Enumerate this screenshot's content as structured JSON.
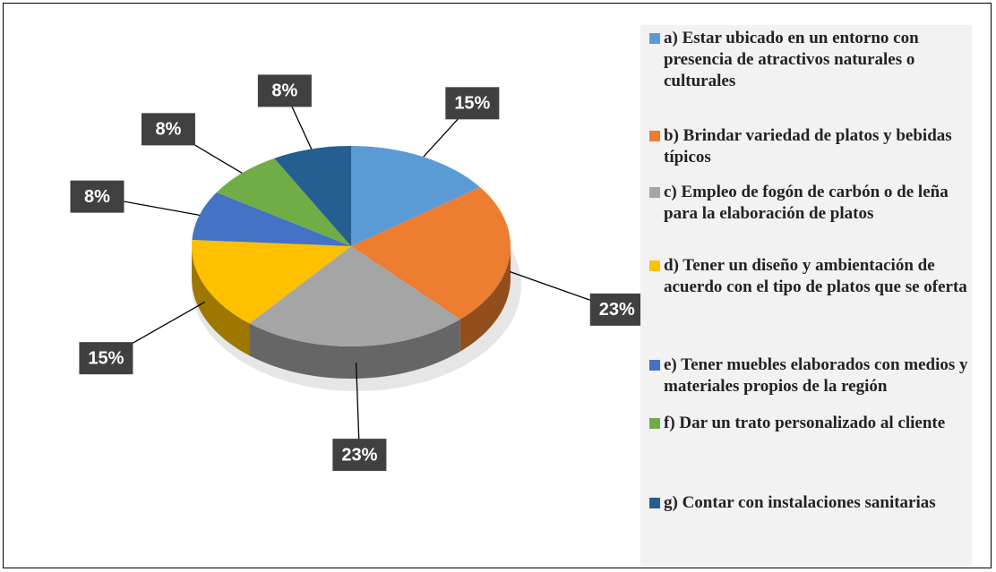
{
  "chart_data": {
    "type": "pie",
    "categories": [
      "a) Estar ubicado en un entorno con presencia de atractivos naturales o culturales",
      "b) Brindar variedad de platos y bebidas típicos",
      "c) Empleo de fogón de carbón o de leña para la elaboración de platos",
      "d) Tener un diseño y ambientación de acuerdo con el tipo de platos que se oferta",
      "e) Tener muebles elaborados con medios y materiales propios de la región",
      "f) Dar un trato personalizado al cliente",
      "g) Contar con instalaciones sanitarias"
    ],
    "values": [
      15,
      23,
      23,
      15,
      8,
      8,
      8
    ],
    "value_labels": [
      "15%",
      "23%",
      "23%",
      "15%",
      "8%",
      "8%",
      "8%"
    ],
    "colors": [
      "#5b9bd5",
      "#ed7d31",
      "#a5a5a5",
      "#ffc000",
      "#4472c4",
      "#70ad47",
      "#255e91"
    ],
    "legend": "right"
  }
}
